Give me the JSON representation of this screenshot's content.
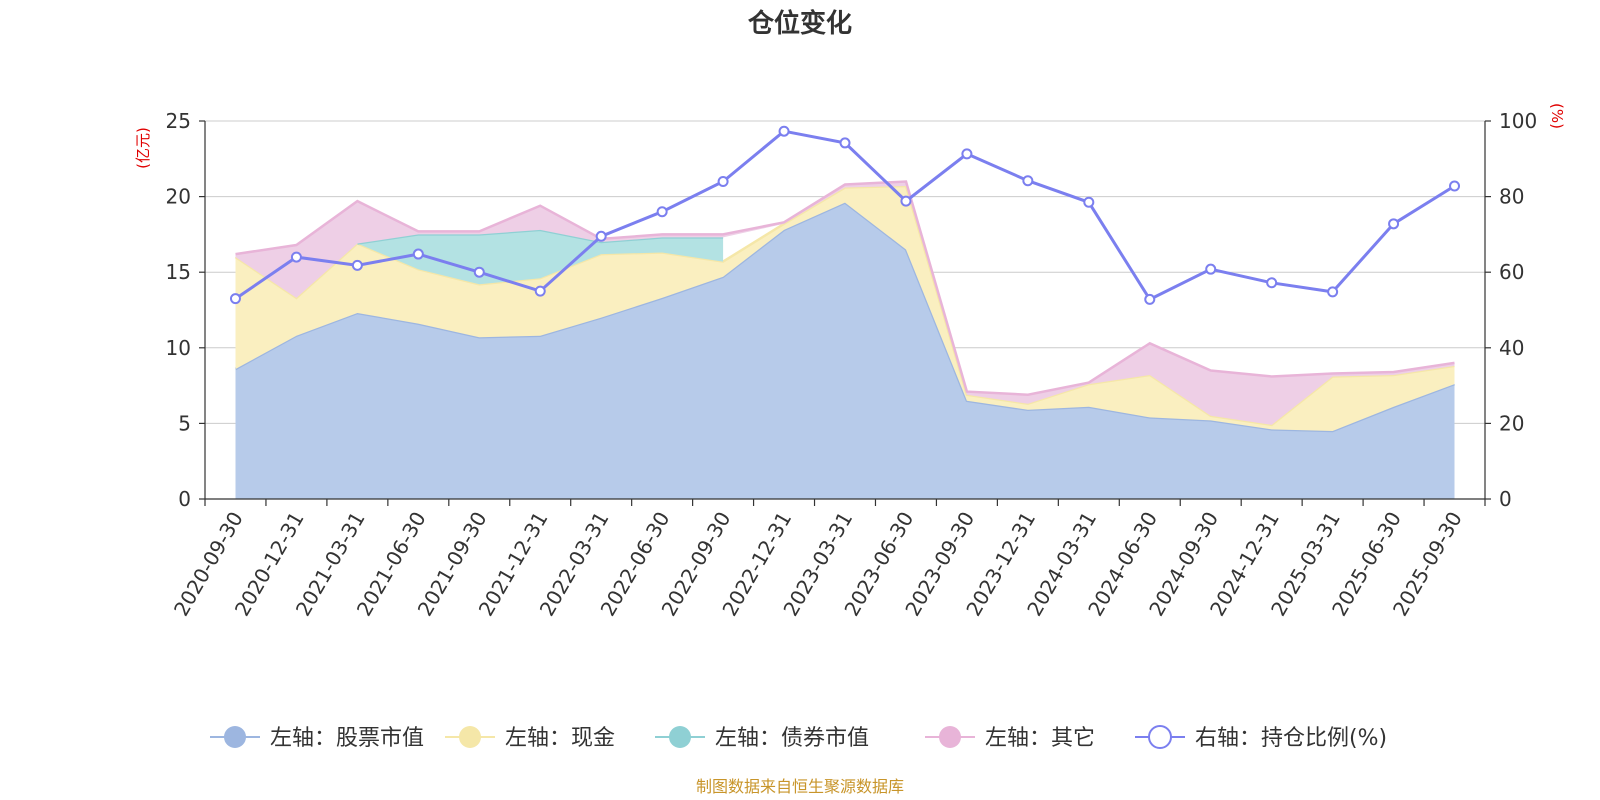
{
  "chart_data": {
    "type": "area",
    "title": "仓位变化",
    "source": "制图数据来自恒生聚源数据库",
    "left_unit": "(亿元)",
    "right_unit": "(%)",
    "y_left": {
      "min": 0,
      "max": 25,
      "ticks": [
        "0",
        "5",
        "10",
        "15",
        "20",
        "25"
      ]
    },
    "y_right": {
      "min": 0,
      "max": 100,
      "ticks": [
        "0",
        "20",
        "40",
        "60",
        "80",
        "100"
      ]
    },
    "categories": [
      "2020-09-30",
      "2020-12-31",
      "2021-03-31",
      "2021-06-30",
      "2021-09-30",
      "2021-12-31",
      "2022-03-31",
      "2022-06-30",
      "2022-09-30",
      "2022-12-31",
      "2023-03-31",
      "2023-06-30",
      "2023-09-30",
      "2023-12-31",
      "2024-03-31",
      "2024-06-30",
      "2024-09-30",
      "2024-12-31",
      "2025-03-31",
      "2025-06-30",
      "2025-09-30"
    ],
    "stack": [
      {
        "name": "左轴：股票市值",
        "color": "#9db6e0",
        "fill": "#b7cbea",
        "values": [
          8.6,
          10.8,
          12.3,
          11.6,
          10.7,
          10.8,
          12.0,
          13.3,
          14.7,
          17.8,
          19.6,
          16.5,
          6.5,
          5.9,
          6.1,
          5.4,
          5.2,
          4.6,
          4.5,
          6.1,
          7.6
        ]
      },
      {
        "name": "左轴：现金",
        "color": "#f5e7a8",
        "fill": "#faefc0",
        "values": [
          7.4,
          2.5,
          4.6,
          3.6,
          3.5,
          3.8,
          4.2,
          3.0,
          1.0,
          0.4,
          1.0,
          4.2,
          0.4,
          0.4,
          1.5,
          2.8,
          0.3,
          0.3,
          3.6,
          2.1,
          1.2
        ]
      },
      {
        "name": "左轴：债券市值",
        "color": "#8fd0d4",
        "fill": "#b3e2e3",
        "values": [
          null,
          null,
          0.0,
          2.3,
          3.3,
          3.2,
          0.8,
          1.0,
          1.6,
          null,
          null,
          null,
          null,
          null,
          null,
          null,
          null,
          null,
          null,
          null,
          null
        ]
      },
      {
        "name": "左轴：其它",
        "color": "#e8b4d8",
        "fill": "#eecfe6",
        "values": [
          0.2,
          3.5,
          2.8,
          0.2,
          0.2,
          1.6,
          0.2,
          0.2,
          0.2,
          0.1,
          0.2,
          0.3,
          0.2,
          0.6,
          0.1,
          2.1,
          3.0,
          3.2,
          0.2,
          0.2,
          0.2
        ]
      }
    ],
    "line": {
      "name": "右轴：持仓比例(%)",
      "color": "#7b7fef",
      "values": [
        53.0,
        64.0,
        61.8,
        64.8,
        60.0,
        55.0,
        69.5,
        76.0,
        84.0,
        97.3,
        94.2,
        78.8,
        91.3,
        84.2,
        78.5,
        52.8,
        60.8,
        57.2,
        54.8,
        72.8,
        82.8
      ]
    }
  }
}
